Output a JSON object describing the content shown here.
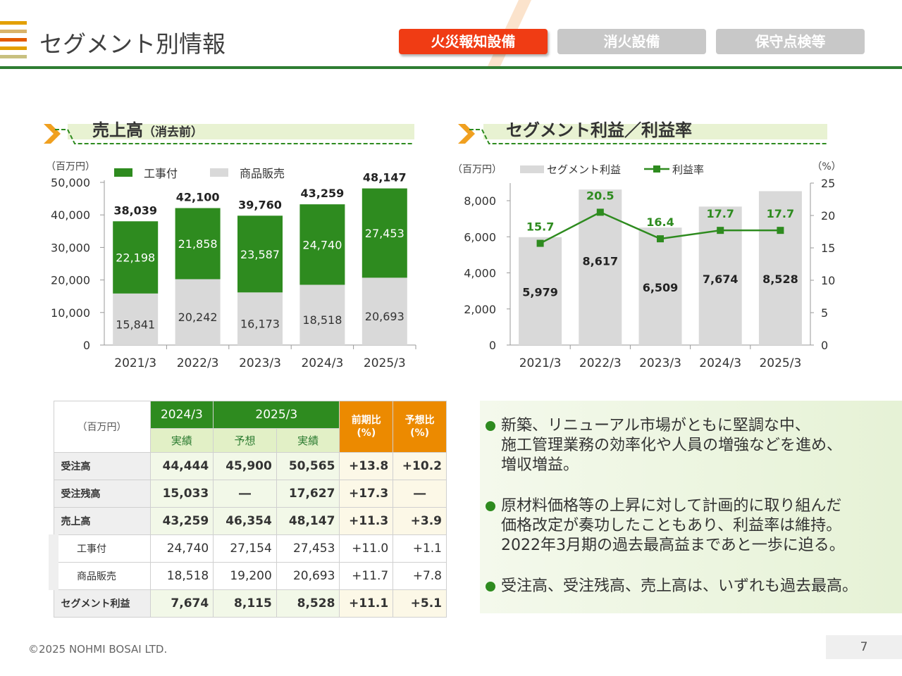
{
  "header": {
    "title": "セグメント別情報",
    "tabs": [
      {
        "label": "火災報知設備",
        "active": true
      },
      {
        "label": "消火設備",
        "active": false
      },
      {
        "label": "保守点検等",
        "active": false
      }
    ]
  },
  "colors": {
    "accent_green": "#2e8b1f",
    "bar_gray": "#d9d9d9",
    "tab_active": "#f03c14",
    "header_orange": "#ec8a00"
  },
  "sales_section": {
    "title": "売上高",
    "subtitle": "（消去前）"
  },
  "profit_section": {
    "title": "セグメント利益／利益率"
  },
  "chart_data": [
    {
      "type": "bar",
      "stacked": true,
      "categories": [
        "2021/3",
        "2022/3",
        "2023/3",
        "2024/3",
        "2025/3"
      ],
      "series": [
        {
          "name": "商品販売",
          "color": "#d9d9d9",
          "values": [
            15841,
            20242,
            16173,
            18518,
            20693
          ],
          "labels": [
            "15,841",
            "20,242",
            "16,173",
            "18,518",
            "20,693"
          ]
        },
        {
          "name": "工事付",
          "color": "#2e8b1f",
          "values": [
            22198,
            21858,
            23587,
            24740,
            27453
          ],
          "labels": [
            "22,198",
            "21,858",
            "23,587",
            "24,740",
            "27,453"
          ]
        }
      ],
      "totals": [
        38039,
        42100,
        39760,
        43259,
        48147
      ],
      "total_labels": [
        "38,039",
        "42,100",
        "39,760",
        "43,259",
        "48,147"
      ],
      "ylabel": "（百万円）",
      "ylim": [
        0,
        50000
      ],
      "yticks": [
        0,
        10000,
        20000,
        30000,
        40000,
        50000
      ],
      "ytick_labels": [
        "0",
        "10,000",
        "20,000",
        "30,000",
        "40,000",
        "50,000"
      ],
      "legend": [
        "工事付",
        "商品販売"
      ],
      "legend_position": "top"
    },
    {
      "type": "bar+line",
      "categories": [
        "2021/3",
        "2022/3",
        "2023/3",
        "2024/3",
        "2025/3"
      ],
      "bars": {
        "name": "セグメント利益",
        "color": "#d9d9d9",
        "values": [
          5979,
          8617,
          6509,
          7674,
          8528
        ],
        "labels": [
          "5,979",
          "8,617",
          "6,509",
          "7,674",
          "8,528"
        ]
      },
      "line": {
        "name": "利益率",
        "color": "#2e8b1f",
        "values": [
          15.7,
          20.5,
          16.4,
          17.7,
          17.7
        ],
        "labels": [
          "15.7",
          "20.5",
          "16.4",
          "17.7",
          "17.7"
        ]
      },
      "ylabel": "（百万円）",
      "ylabel_right": "（%）",
      "ylim": [
        0,
        9000
      ],
      "yticks": [
        0,
        2000,
        4000,
        6000,
        8000
      ],
      "ytick_labels": [
        "0",
        "2,000",
        "4,000",
        "6,000",
        "8,000"
      ],
      "ylim_right": [
        0,
        25
      ],
      "yticks_right": [
        0,
        5,
        10,
        15,
        20,
        25
      ],
      "legend_position": "top"
    }
  ],
  "table": {
    "unit": "（百万円）",
    "col_groups": [
      {
        "label": "2024/3"
      },
      {
        "label": "2025/3"
      }
    ],
    "sub_headers": [
      "実績",
      "予想",
      "実績"
    ],
    "yoy_header": [
      "前期比",
      "(%)"
    ],
    "forecast_header": [
      "予想比",
      "(%)"
    ],
    "rows": [
      {
        "label": "受注高",
        "cells": [
          "44,444",
          "45,900",
          "50,565",
          "+13.8",
          "+10.2"
        ],
        "bold": true,
        "sub": false
      },
      {
        "label": "受注残高",
        "cells": [
          "15,033",
          "―",
          "17,627",
          "+17.3",
          "―"
        ],
        "bold": true,
        "sub": false
      },
      {
        "label": "売上高",
        "cells": [
          "43,259",
          "46,354",
          "48,147",
          "+11.3",
          "+3.9"
        ],
        "bold": true,
        "sub": false
      },
      {
        "label": "工事付",
        "cells": [
          "24,740",
          "27,154",
          "27,453",
          "+11.0",
          "+1.1"
        ],
        "bold": false,
        "sub": true
      },
      {
        "label": "商品販売",
        "cells": [
          "18,518",
          "19,200",
          "20,693",
          "+11.7",
          "+7.8"
        ],
        "bold": false,
        "sub": true
      },
      {
        "label": "セグメント利益",
        "cells": [
          "7,674",
          "8,115",
          "8,528",
          "+11.1",
          "+5.1"
        ],
        "bold": true,
        "sub": false
      }
    ]
  },
  "comments": [
    {
      "lines": [
        "新築、リニューアル市場がともに堅調な中、",
        "施工管理業務の効率化や人員の増強などを進め、",
        "増収増益。"
      ]
    },
    {
      "lines": [
        "原材料価格等の上昇に対して計画的に取り組んだ",
        "価格改定が奏功したこともあり、利益率は維持。",
        "2022年3月期の過去最高益まであと一歩に迫る。"
      ]
    },
    {
      "lines": [
        "受注高、受注残高、売上高は、いずれも過去最高。"
      ]
    }
  ],
  "footer": {
    "copyright": "©2025 NOHMI BOSAI LTD.",
    "page": "7"
  }
}
